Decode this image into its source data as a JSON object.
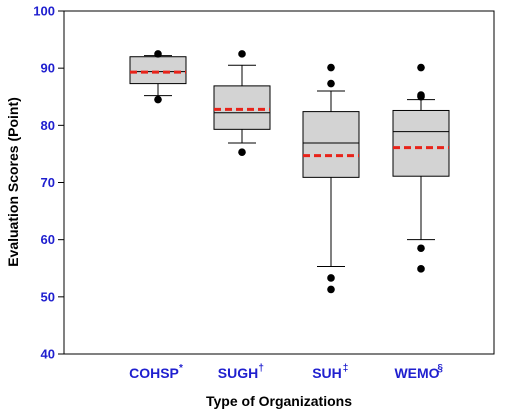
{
  "chart_data": {
    "type": "box",
    "ylabel": "Evaluation Scores (Point)",
    "xlabel": "Type of Organizations",
    "ylim": [
      40,
      100
    ],
    "yticks": [
      "40",
      "50",
      "60",
      "70",
      "80",
      "90",
      "100"
    ],
    "categories": [
      {
        "name": "COHSP",
        "sup": "*"
      },
      {
        "name": "SUGH",
        "sup": "†"
      },
      {
        "name": "SUH",
        "sup": "‡"
      },
      {
        "name": "WEMO",
        "sup": "§"
      }
    ],
    "boxes": [
      {
        "whisker_low": 85.2,
        "q1": 87.3,
        "median": 89.4,
        "q3": 92.0,
        "whisker_high": 92.2,
        "mean": 89.3,
        "outliers": [
          84.5,
          92.5
        ]
      },
      {
        "whisker_low": 76.9,
        "q1": 79.3,
        "median": 82.2,
        "q3": 86.9,
        "whisker_high": 90.5,
        "mean": 82.8,
        "outliers": [
          75.3,
          92.5
        ]
      },
      {
        "whisker_low": 55.3,
        "q1": 70.9,
        "median": 76.9,
        "q3": 82.4,
        "whisker_high": 86.0,
        "mean": 74.7,
        "outliers": [
          53.3,
          51.3,
          87.3,
          90.1
        ]
      },
      {
        "whisker_low": 60.0,
        "q1": 71.1,
        "median": 78.9,
        "q3": 82.6,
        "whisker_high": 84.5,
        "mean": 76.1,
        "outliers": [
          58.5,
          54.9,
          85.0,
          85.3,
          90.1
        ]
      }
    ],
    "colors": {
      "box_fill": "#d3d3d3",
      "mean_line": "#e8231a",
      "tick_label": "#1f1fcf",
      "axis": "#000000"
    },
    "grid": false,
    "legend": "none"
  }
}
